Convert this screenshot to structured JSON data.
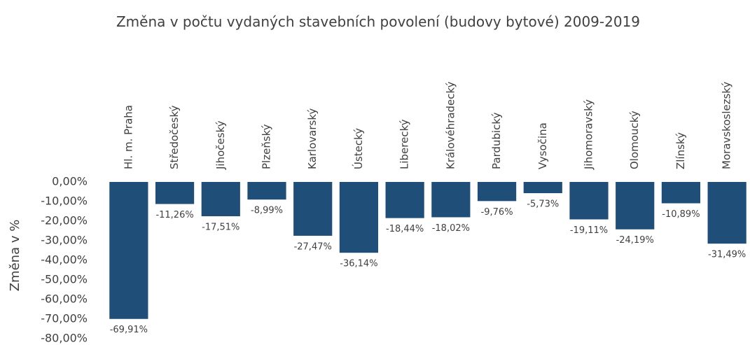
{
  "chart_data": {
    "type": "bar",
    "title": "Změna v počtu vydaných stavebních povolení (budovy bytové) 2009-2019",
    "y_label": "Změna v %",
    "categories": [
      "Hl. m. Praha",
      "Středočeský",
      "Jihočeský",
      "Plzeňský",
      "Karlovarský",
      "Ústecký",
      "Liberecký",
      "Královéhradecký",
      "Pardubický",
      "Vysočina",
      "Jihomoravský",
      "Olomoucký",
      "Zlínský",
      "Moravskoslezský"
    ],
    "values": [
      -69.91,
      -11.26,
      -17.51,
      -8.99,
      -27.47,
      -36.14,
      -18.44,
      -18.02,
      -9.76,
      -5.73,
      -19.11,
      -24.19,
      -10.89,
      -31.49
    ],
    "value_labels": [
      "-69,91%",
      "-11,26%",
      "-17,51%",
      "-8,99%",
      "-27,47%",
      "-36,14%",
      "-18,44%",
      "-18,02%",
      "-9,76%",
      "-5,73%",
      "-19,11%",
      "-24,19%",
      "-10,89%",
      "-31,49%"
    ],
    "color": "#1f4e79",
    "ylim": [
      -80,
      0
    ],
    "yticks": [
      {
        "value": 0,
        "label": "0,00%"
      },
      {
        "value": -10,
        "label": "-10,00%"
      },
      {
        "value": -20,
        "label": "-20,00%"
      },
      {
        "value": -30,
        "label": "-30,00%"
      },
      {
        "value": -40,
        "label": "-40,00%"
      },
      {
        "value": -50,
        "label": "-50,00%"
      },
      {
        "value": -60,
        "label": "-60,00%"
      },
      {
        "value": -70,
        "label": "-70,00%"
      },
      {
        "value": -80,
        "label": "-80,00%"
      }
    ],
    "grid": false
  }
}
